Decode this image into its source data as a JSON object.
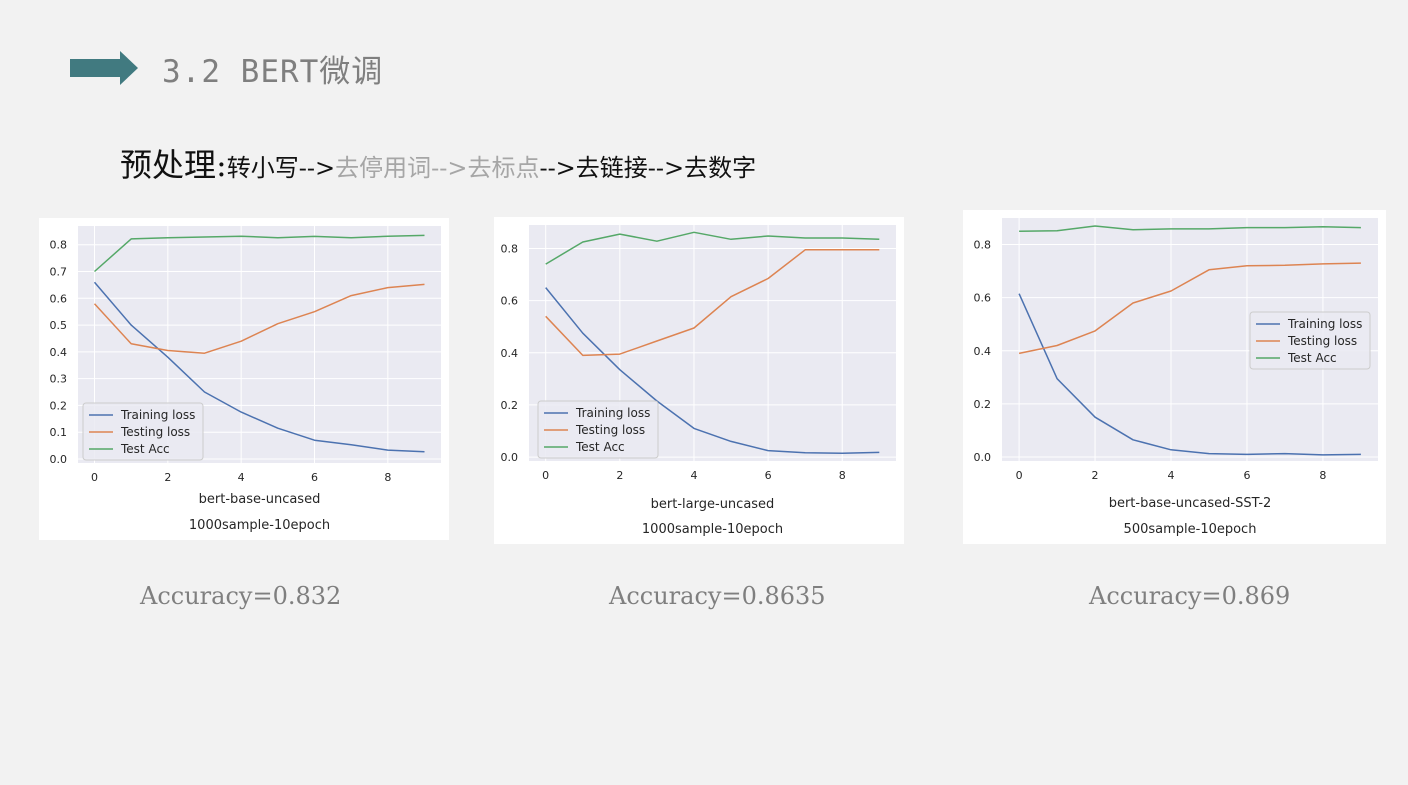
{
  "slide": {
    "title": "3.2 BERT微调",
    "accent_color": "#417a80",
    "preprocess": {
      "label": "预处理:",
      "steps": [
        {
          "text": "转小写",
          "dimmed": false
        },
        {
          "text": "-->",
          "dimmed": false
        },
        {
          "text": "去停用词",
          "dimmed": true
        },
        {
          "text": "-->",
          "dimmed": true
        },
        {
          "text": "去标点",
          "dimmed": true
        },
        {
          "text": "-->",
          "dimmed": false
        },
        {
          "text": "去链接",
          "dimmed": false
        },
        {
          "text": "-->",
          "dimmed": false
        },
        {
          "text": "去数字",
          "dimmed": false
        }
      ]
    }
  },
  "results": [
    {
      "accuracy": "Accuracy=0.832"
    },
    {
      "accuracy": "Accuracy=0.8635"
    },
    {
      "accuracy": "Accuracy=0.869"
    }
  ],
  "chart_data": [
    {
      "type": "line",
      "xlabel": "bert-base-uncased",
      "caption": "1000sample-10epoch",
      "x": [
        0,
        1,
        2,
        3,
        4,
        5,
        6,
        7,
        8,
        9
      ],
      "xticks": [
        0,
        2,
        4,
        6,
        8
      ],
      "ylim": [
        0,
        0.87
      ],
      "yticks": [
        "0.0",
        "0.1",
        "0.2",
        "0.3",
        "0.4",
        "0.5",
        "0.6",
        "0.7",
        "0.8"
      ],
      "grid": true,
      "legend": "lower-left",
      "series": [
        {
          "name": "Training loss",
          "color": "#4c72b0",
          "values": [
            0.66,
            0.5,
            0.38,
            0.25,
            0.175,
            0.115,
            0.07,
            0.053,
            0.033,
            0.027
          ]
        },
        {
          "name": "Testing loss",
          "color": "#dd8452",
          "values": [
            0.58,
            0.43,
            0.405,
            0.395,
            0.44,
            0.505,
            0.55,
            0.61,
            0.64,
            0.652
          ]
        },
        {
          "name": "Test Acc",
          "color": "#55a868",
          "values": [
            0.7,
            0.822,
            0.826,
            0.829,
            0.832,
            0.826,
            0.831,
            0.826,
            0.832,
            0.835
          ]
        }
      ]
    },
    {
      "type": "line",
      "xlabel": "bert-large-uncased",
      "caption": "1000sample-10epoch",
      "x": [
        0,
        1,
        2,
        3,
        4,
        5,
        6,
        7,
        8,
        9
      ],
      "xticks": [
        0,
        2,
        4,
        6,
        8
      ],
      "ylim": [
        0,
        0.89
      ],
      "yticks": [
        "0.0",
        "0.2",
        "0.4",
        "0.6",
        "0.8"
      ],
      "grid": true,
      "legend": "lower-left",
      "series": [
        {
          "name": "Training loss",
          "color": "#4c72b0",
          "values": [
            0.65,
            0.475,
            0.335,
            0.215,
            0.11,
            0.06,
            0.025,
            0.017,
            0.015,
            0.018
          ]
        },
        {
          "name": "Testing loss",
          "color": "#dd8452",
          "values": [
            0.54,
            0.39,
            0.395,
            0.445,
            0.495,
            0.615,
            0.685,
            0.795,
            0.795,
            0.795
          ]
        },
        {
          "name": "Test Acc",
          "color": "#55a868",
          "values": [
            0.74,
            0.825,
            0.855,
            0.828,
            0.862,
            0.835,
            0.848,
            0.84,
            0.84,
            0.835
          ]
        }
      ]
    },
    {
      "type": "line",
      "xlabel": "bert-base-uncased-SST-2",
      "caption": "500sample-10epoch",
      "x": [
        0,
        1,
        2,
        3,
        4,
        5,
        6,
        7,
        8,
        9
      ],
      "xticks": [
        0,
        2,
        4,
        6,
        8
      ],
      "ylim": [
        0,
        0.9
      ],
      "yticks": [
        "0.0",
        "0.2",
        "0.4",
        "0.6",
        "0.8"
      ],
      "grid": true,
      "legend": "center-right",
      "series": [
        {
          "name": "Training loss",
          "color": "#4c72b0",
          "values": [
            0.615,
            0.295,
            0.15,
            0.065,
            0.027,
            0.013,
            0.01,
            0.013,
            0.008,
            0.01
          ]
        },
        {
          "name": "Testing loss",
          "color": "#dd8452",
          "values": [
            0.39,
            0.42,
            0.475,
            0.58,
            0.625,
            0.705,
            0.72,
            0.722,
            0.727,
            0.73
          ]
        },
        {
          "name": "Test Acc",
          "color": "#55a868",
          "values": [
            0.85,
            0.852,
            0.87,
            0.856,
            0.859,
            0.859,
            0.864,
            0.864,
            0.867,
            0.864
          ]
        }
      ]
    }
  ]
}
